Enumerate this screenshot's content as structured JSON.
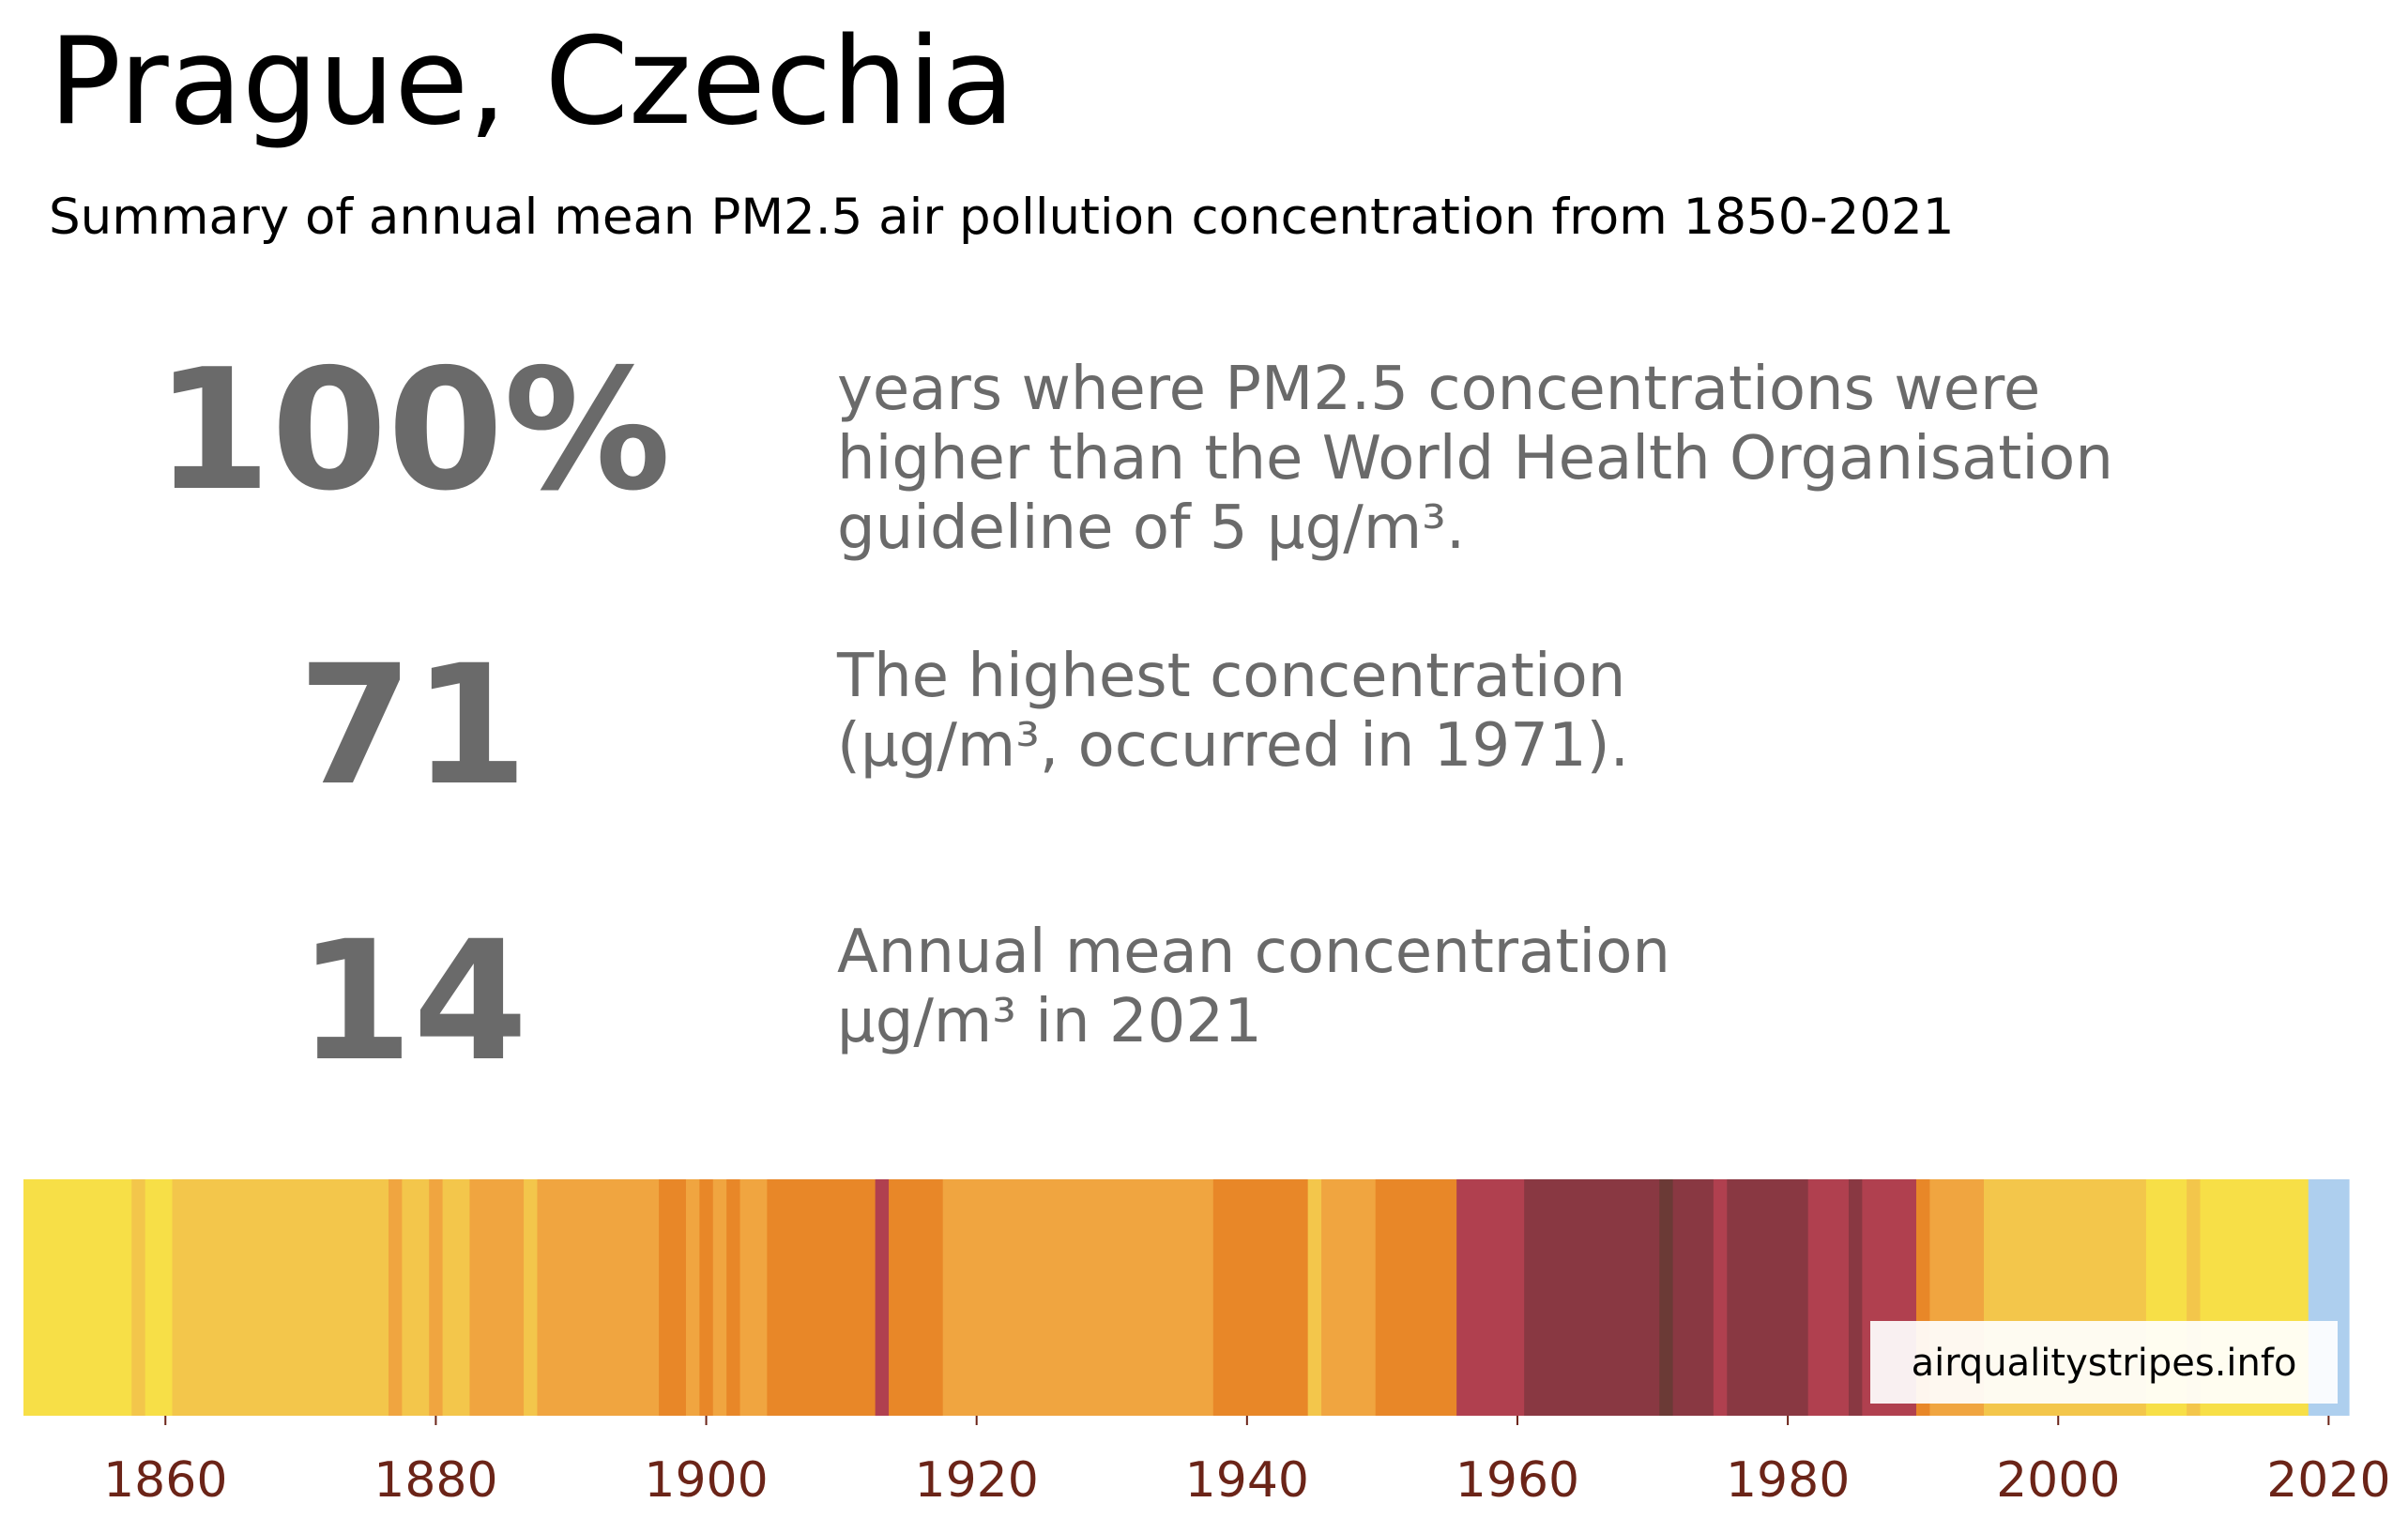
{
  "header": {
    "title": "Prague, Czechia",
    "subtitle": "Summary of annual mean PM2.5 air pollution concentration from 1850-2021"
  },
  "stats": [
    {
      "value": "100%",
      "description": "years where PM2.5 concentrations were\nhigher than the World Health Organisation\nguideline of 5 µg/m³."
    },
    {
      "value": "71",
      "description": "The highest concentration\n(µg/m³, occurred in 1971)."
    },
    {
      "value": "14",
      "description": "Annual mean concentration\nµg/m³ in 2021"
    }
  ],
  "watermark": "airqualitystripes.info",
  "colors": {
    "stat_text": "#6a6a6a",
    "tick_label": "#6b2418",
    "stripe_palette": {
      "blue": "#aecfee",
      "yellow": "#f7df47",
      "light-orange": "#f3c64b",
      "orange": "#f0a540",
      "dark-orange": "#e88728",
      "red": "#b0404f",
      "dark-red": "#893842",
      "brown": "#6b3a36"
    }
  },
  "chart_data": {
    "type": "heatmap",
    "x_range": [
      1850,
      2021
    ],
    "x_ticks": [
      "1860",
      "1880",
      "1900",
      "1920",
      "1940",
      "1960",
      "1980",
      "2000",
      "2020"
    ],
    "color_scale": [
      "blue",
      "yellow",
      "light-orange",
      "orange",
      "dark-orange",
      "red",
      "dark-red",
      "brown"
    ],
    "stripes": [
      {
        "from": 1850,
        "to": 1857,
        "level": "yellow"
      },
      {
        "from": 1858,
        "to": 1858,
        "level": "light-orange"
      },
      {
        "from": 1859,
        "to": 1860,
        "level": "yellow"
      },
      {
        "from": 1861,
        "to": 1876,
        "level": "light-orange"
      },
      {
        "from": 1877,
        "to": 1877,
        "level": "orange"
      },
      {
        "from": 1878,
        "to": 1879,
        "level": "light-orange"
      },
      {
        "from": 1880,
        "to": 1880,
        "level": "orange"
      },
      {
        "from": 1881,
        "to": 1882,
        "level": "light-orange"
      },
      {
        "from": 1883,
        "to": 1886,
        "level": "orange"
      },
      {
        "from": 1887,
        "to": 1887,
        "level": "light-orange"
      },
      {
        "from": 1888,
        "to": 1896,
        "level": "orange"
      },
      {
        "from": 1897,
        "to": 1898,
        "level": "dark-orange"
      },
      {
        "from": 1899,
        "to": 1899,
        "level": "orange"
      },
      {
        "from": 1900,
        "to": 1900,
        "level": "dark-orange"
      },
      {
        "from": 1901,
        "to": 1901,
        "level": "orange"
      },
      {
        "from": 1902,
        "to": 1902,
        "level": "dark-orange"
      },
      {
        "from": 1903,
        "to": 1904,
        "level": "orange"
      },
      {
        "from": 1905,
        "to": 1912,
        "level": "dark-orange"
      },
      {
        "from": 1913,
        "to": 1913,
        "level": "red"
      },
      {
        "from": 1914,
        "to": 1917,
        "level": "dark-orange"
      },
      {
        "from": 1918,
        "to": 1937,
        "level": "orange"
      },
      {
        "from": 1938,
        "to": 1944,
        "level": "dark-orange"
      },
      {
        "from": 1945,
        "to": 1945,
        "level": "light-orange"
      },
      {
        "from": 1946,
        "to": 1949,
        "level": "orange"
      },
      {
        "from": 1950,
        "to": 1955,
        "level": "dark-orange"
      },
      {
        "from": 1956,
        "to": 1960,
        "level": "red"
      },
      {
        "from": 1961,
        "to": 1970,
        "level": "dark-red"
      },
      {
        "from": 1971,
        "to": 1971,
        "level": "brown"
      },
      {
        "from": 1972,
        "to": 1974,
        "level": "dark-red"
      },
      {
        "from": 1975,
        "to": 1975,
        "level": "red"
      },
      {
        "from": 1976,
        "to": 1981,
        "level": "dark-red"
      },
      {
        "from": 1982,
        "to": 1984,
        "level": "red"
      },
      {
        "from": 1985,
        "to": 1985,
        "level": "dark-red"
      },
      {
        "from": 1986,
        "to": 1989,
        "level": "red"
      },
      {
        "from": 1990,
        "to": 1990,
        "level": "dark-orange"
      },
      {
        "from": 1991,
        "to": 1994,
        "level": "orange"
      },
      {
        "from": 1995,
        "to": 2006,
        "level": "light-orange"
      },
      {
        "from": 2007,
        "to": 2009,
        "level": "yellow"
      },
      {
        "from": 2010,
        "to": 2010,
        "level": "light-orange"
      },
      {
        "from": 2011,
        "to": 2018,
        "level": "yellow"
      },
      {
        "from": 2019,
        "to": 2021,
        "level": "blue"
      }
    ]
  }
}
